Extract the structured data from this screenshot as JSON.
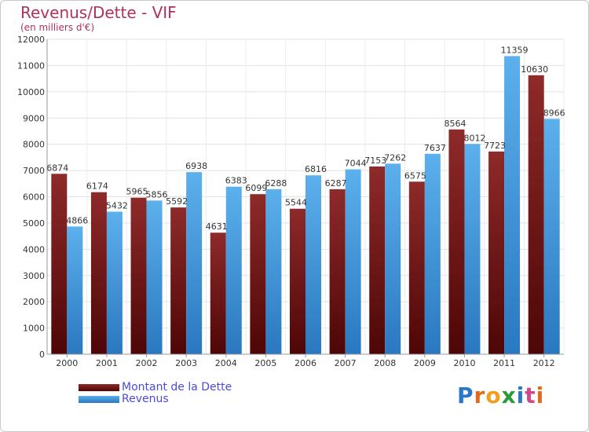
{
  "header": {
    "title": "Revenus/Dette - VIF",
    "subtitle": "(en milliers d'€)"
  },
  "logo": {
    "text": "Proxiti",
    "letters": [
      {
        "ch": "P",
        "color": "#2a78c8"
      },
      {
        "ch": "r",
        "color": "#e06a1a"
      },
      {
        "ch": "o",
        "color": "#f0a020"
      },
      {
        "ch": "x",
        "color": "#2a9a3a"
      },
      {
        "ch": "i",
        "color": "#2a78c8"
      },
      {
        "ch": "t",
        "color": "#d04a8a"
      },
      {
        "ch": "i",
        "color": "#e06a1a"
      }
    ]
  },
  "colors": {
    "dette": "#7a1a1a",
    "revenus": "#4aa0e0",
    "title": "#b03060",
    "legend_text": "#4a4ae0"
  },
  "chart_data": {
    "type": "bar",
    "title": "Revenus/Dette - VIF",
    "subtitle": "(en milliers d'€)",
    "xlabel": "",
    "ylabel": "",
    "ylim": [
      0,
      12000
    ],
    "yticks": [
      0,
      1000,
      2000,
      3000,
      4000,
      5000,
      6000,
      7000,
      8000,
      9000,
      10000,
      11000,
      12000
    ],
    "grid": true,
    "legend_position": "bottom-left",
    "categories": [
      "2000",
      "2001",
      "2002",
      "2003",
      "2004",
      "2005",
      "2006",
      "2007",
      "2008",
      "2009",
      "2010",
      "2011",
      "2012"
    ],
    "series": [
      {
        "name": "Montant de la Dette",
        "values": [
          6874,
          6174,
          5965,
          5592,
          4631,
          6099,
          5544,
          6287,
          7153,
          6575,
          8564,
          7723,
          10630
        ],
        "labels": [
          "6874",
          "6174",
          "5965",
          "5592",
          "4631",
          "6099",
          "5544",
          "6287",
          "7153",
          "6575",
          "8564",
          "7723",
          "10630"
        ]
      },
      {
        "name": "Revenus",
        "values": [
          4866,
          5432,
          5856,
          6938,
          6383,
          6288,
          6816,
          7044,
          7262,
          7637,
          8012,
          11359,
          8966
        ],
        "labels": [
          "4866",
          "5432",
          "5856",
          "6938",
          "6383",
          "6288",
          "6816",
          "7044",
          "7262",
          "7637",
          "8012",
          "11359",
          "8966"
        ]
      }
    ]
  }
}
